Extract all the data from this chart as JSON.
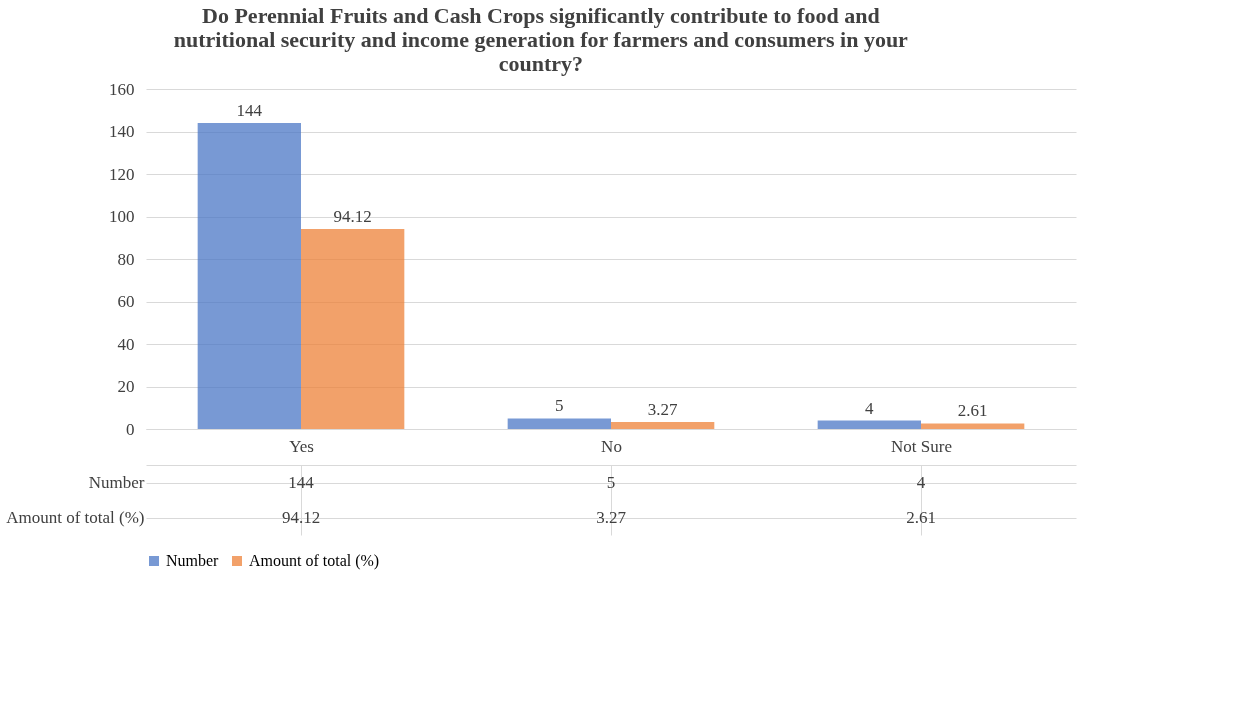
{
  "chart_data": {
    "type": "bar",
    "title": "Do Perennial Fruits and Cash Crops significantly contribute to food and nutritional security and income generation for farmers and consumers in your  country?",
    "categories": [
      "Yes",
      "No",
      "Not Sure"
    ],
    "series": [
      {
        "name": "Number",
        "color": "#4472c4",
        "values": [
          144,
          5,
          4
        ],
        "value_labels": [
          "144",
          "5",
          "4"
        ]
      },
      {
        "name": "Amount of total (%)",
        "color": "#ed7d31",
        "values": [
          94.12,
          3.27,
          2.61
        ],
        "value_labels": [
          "94.12",
          "3.27",
          "2.61"
        ]
      }
    ],
    "ylim": [
      0,
      160
    ],
    "yticks": [
      0,
      20,
      40,
      60,
      80,
      100,
      120,
      140,
      160
    ],
    "grid": "y",
    "legend": "bottom"
  }
}
